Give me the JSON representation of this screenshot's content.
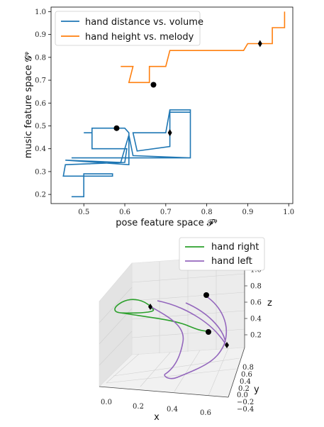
{
  "chart_data": [
    {
      "type": "line",
      "xlabel": "pose feature space 𝓕ᵠ",
      "ylabel": "music feature space 𝓖ᵠ",
      "xlim": [
        0.42,
        1.01
      ],
      "ylim": [
        0.16,
        1.02
      ],
      "xticks": [
        "0.5",
        "0.6",
        "0.7",
        "0.8",
        "0.9",
        "1.0"
      ],
      "yticks": [
        "0.2",
        "0.3",
        "0.4",
        "0.5",
        "0.6",
        "0.7",
        "0.8",
        "0.9",
        "1.0"
      ],
      "legend_position": "top-left",
      "series": [
        {
          "name": "hand distance vs. volume",
          "color": "#1f77b4",
          "points": [
            [
              0.47,
              0.19
            ],
            [
              0.5,
              0.19
            ],
            [
              0.5,
              0.29
            ],
            [
              0.57,
              0.29
            ],
            [
              0.57,
              0.28
            ],
            [
              0.51,
              0.28
            ],
            [
              0.51,
              0.28
            ],
            [
              0.45,
              0.28
            ],
            [
              0.455,
              0.33
            ],
            [
              0.6,
              0.34
            ],
            [
              0.605,
              0.4
            ],
            [
              0.52,
              0.4
            ],
            [
              0.52,
              0.47
            ],
            [
              0.5,
              0.47
            ],
            [
              0.52,
              0.47
            ],
            [
              0.52,
              0.49
            ],
            [
              0.6,
              0.49
            ],
            [
              0.61,
              0.47
            ],
            [
              0.61,
              0.33
            ],
            [
              0.455,
              0.35
            ],
            [
              0.59,
              0.34
            ],
            [
              0.61,
              0.46
            ],
            [
              0.62,
              0.37
            ],
            [
              0.76,
              0.36
            ],
            [
              0.76,
              0.56
            ],
            [
              0.71,
              0.56
            ],
            [
              0.71,
              0.57
            ],
            [
              0.7,
              0.47
            ],
            [
              0.62,
              0.47
            ],
            [
              0.63,
              0.39
            ],
            [
              0.71,
              0.41
            ],
            [
              0.71,
              0.57
            ],
            [
              0.76,
              0.57
            ],
            [
              0.76,
              0.36
            ],
            [
              0.47,
              0.36
            ]
          ],
          "start": [
            0.58,
            0.49
          ],
          "end": [
            0.71,
            0.47
          ]
        },
        {
          "name": "hand height vs. melody",
          "color": "#ff7f0e",
          "points": [
            [
              0.59,
              0.76
            ],
            [
              0.62,
              0.76
            ],
            [
              0.61,
              0.69
            ],
            [
              0.66,
              0.69
            ],
            [
              0.66,
              0.76
            ],
            [
              0.7,
              0.76
            ],
            [
              0.71,
              0.83
            ],
            [
              0.89,
              0.83
            ],
            [
              0.9,
              0.86
            ],
            [
              0.96,
              0.86
            ],
            [
              0.96,
              0.93
            ],
            [
              0.99,
              0.93
            ],
            [
              0.99,
              1.0
            ]
          ],
          "start": [
            0.67,
            0.68
          ],
          "end": [
            0.93,
            0.86
          ]
        }
      ]
    },
    {
      "type": "line",
      "projection": "3d",
      "xlabel": "x",
      "ylabel": "y",
      "zlabel": "z",
      "xlim": [
        -0.1,
        0.7
      ],
      "ylim": [
        -0.4,
        0.8
      ],
      "zlim": [
        0.1,
        1.0
      ],
      "xticks": [
        "0.0",
        "0.2",
        "0.4",
        "0.6"
      ],
      "yticks": [
        "−0.4",
        "−0.2",
        "0.0",
        "0.2",
        "0.4",
        "0.6",
        "0.8"
      ],
      "zticks": [
        "0.2",
        "0.4",
        "0.6",
        "0.8",
        "1.0"
      ],
      "legend_position": "top-right",
      "series": [
        {
          "name": "hand right",
          "color": "#2ca02c"
        },
        {
          "name": "hand left",
          "color": "#9467bd"
        }
      ]
    }
  ]
}
